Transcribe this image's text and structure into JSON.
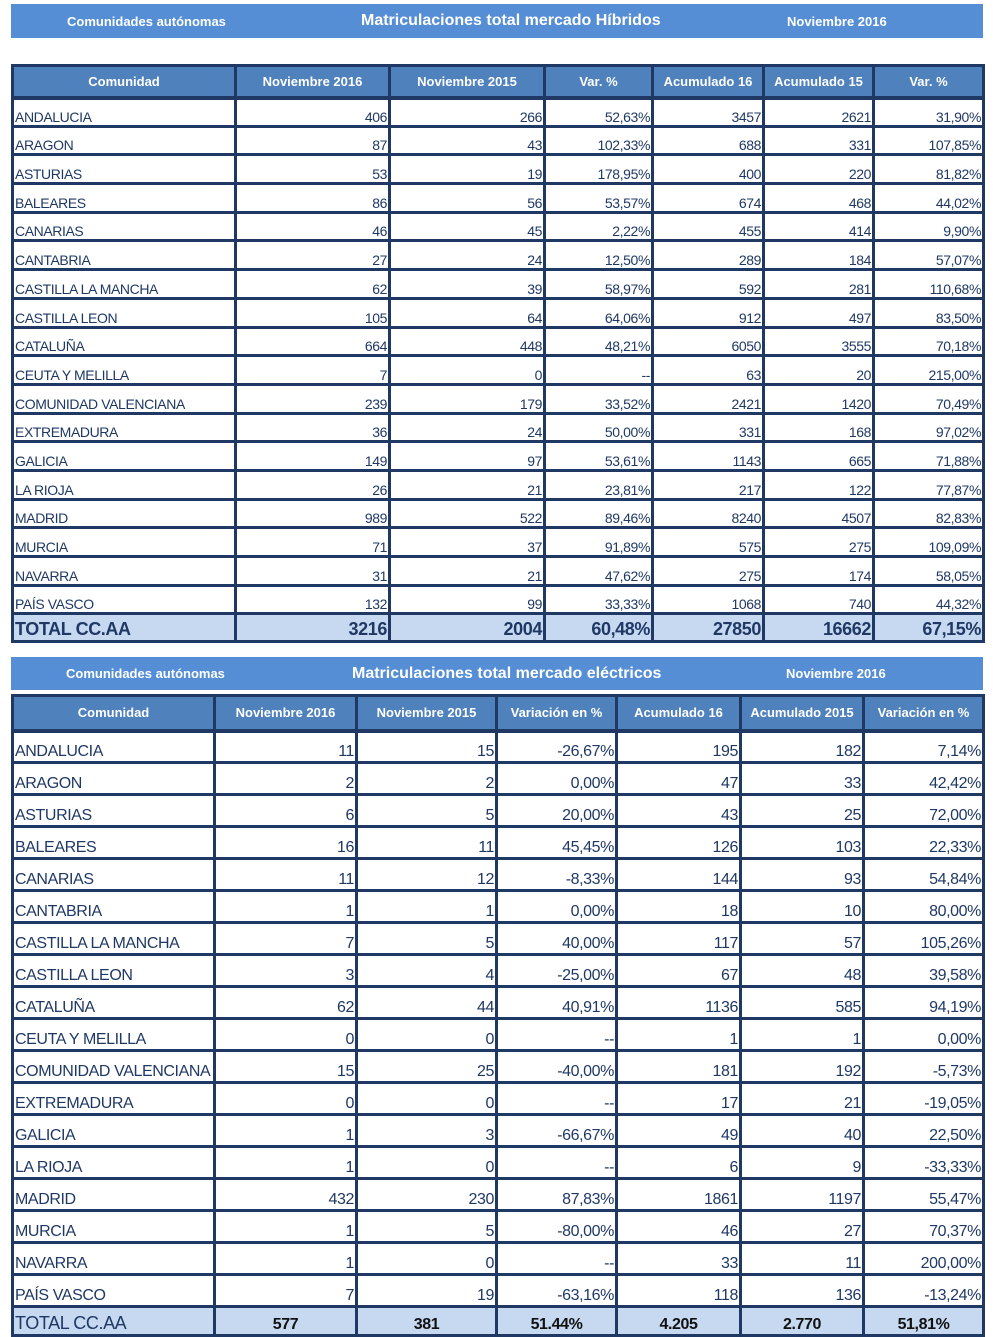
{
  "hybrid": {
    "band": {
      "left": "Comunidades autónomas",
      "title": "Matriculaciones total mercado Híbridos",
      "right": "Noviembre 2016"
    },
    "headers": [
      "Comunidad",
      "Noviembre 2016",
      "Noviembre 2015",
      "Var. %",
      "Acumulado 16",
      "Acumulado 15",
      "Var. %"
    ],
    "rows": [
      [
        "ANDALUCIA",
        "406",
        "266",
        "52,63%",
        "3457",
        "2621",
        "31,90%"
      ],
      [
        "ARAGON",
        "87",
        "43",
        "102,33%",
        "688",
        "331",
        "107,85%"
      ],
      [
        "ASTURIAS",
        "53",
        "19",
        "178,95%",
        "400",
        "220",
        "81,82%"
      ],
      [
        "BALEARES",
        "86",
        "56",
        "53,57%",
        "674",
        "468",
        "44,02%"
      ],
      [
        "CANARIAS",
        "46",
        "45",
        "2,22%",
        "455",
        "414",
        "9,90%"
      ],
      [
        "CANTABRIA",
        "27",
        "24",
        "12,50%",
        "289",
        "184",
        "57,07%"
      ],
      [
        "CASTILLA LA MANCHA",
        "62",
        "39",
        "58,97%",
        "592",
        "281",
        "110,68%"
      ],
      [
        "CASTILLA LEON",
        "105",
        "64",
        "64,06%",
        "912",
        "497",
        "83,50%"
      ],
      [
        "CATALUÑA",
        "664",
        "448",
        "48,21%",
        "6050",
        "3555",
        "70,18%"
      ],
      [
        "CEUTA Y MELILLA",
        "7",
        "0",
        "--",
        "63",
        "20",
        "215,00%"
      ],
      [
        "COMUNIDAD VALENCIANA",
        "239",
        "179",
        "33,52%",
        "2421",
        "1420",
        "70,49%"
      ],
      [
        "EXTREMADURA",
        "36",
        "24",
        "50,00%",
        "331",
        "168",
        "97,02%"
      ],
      [
        "GALICIA",
        "149",
        "97",
        "53,61%",
        "1143",
        "665",
        "71,88%"
      ],
      [
        "LA RIOJA",
        "26",
        "21",
        "23,81%",
        "217",
        "122",
        "77,87%"
      ],
      [
        "MADRID",
        "989",
        "522",
        "89,46%",
        "8240",
        "4507",
        "82,83%"
      ],
      [
        "MURCIA",
        "71",
        "37",
        "91,89%",
        "575",
        "275",
        "109,09%"
      ],
      [
        "NAVARRA",
        "31",
        "21",
        "47,62%",
        "275",
        "174",
        "58,05%"
      ],
      [
        "PAÍS VASCO",
        "132",
        "99",
        "33,33%",
        "1068",
        "740",
        "44,32%"
      ]
    ],
    "total": [
      "TOTAL CC.AA",
      "3216",
      "2004",
      "60,48%",
      "27850",
      "16662",
      "67,15%"
    ]
  },
  "electric": {
    "band": {
      "left": "Comunidades autónomas",
      "title": "Matriculaciones total mercado eléctricos",
      "right": "Noviembre 2016"
    },
    "headers": [
      "Comunidad",
      "Noviembre 2016",
      "Noviembre 2015",
      "Variación en %",
      "Acumulado 16",
      "Acumulado 2015",
      "Variación en %"
    ],
    "rows": [
      [
        "ANDALUCIA",
        "11",
        "15",
        "-26,67%",
        "195",
        "182",
        "7,14%"
      ],
      [
        "ARAGON",
        "2",
        "2",
        "0,00%",
        "47",
        "33",
        "42,42%"
      ],
      [
        "ASTURIAS",
        "6",
        "5",
        "20,00%",
        "43",
        "25",
        "72,00%"
      ],
      [
        "BALEARES",
        "16",
        "11",
        "45,45%",
        "126",
        "103",
        "22,33%"
      ],
      [
        "CANARIAS",
        "11",
        "12",
        "-8,33%",
        "144",
        "93",
        "54,84%"
      ],
      [
        "CANTABRIA",
        "1",
        "1",
        "0,00%",
        "18",
        "10",
        "80,00%"
      ],
      [
        "CASTILLA LA MANCHA",
        "7",
        "5",
        "40,00%",
        "117",
        "57",
        "105,26%"
      ],
      [
        "CASTILLA LEON",
        "3",
        "4",
        "-25,00%",
        "67",
        "48",
        "39,58%"
      ],
      [
        "CATALUÑA",
        "62",
        "44",
        "40,91%",
        "1136",
        "585",
        "94,19%"
      ],
      [
        "CEUTA Y MELILLA",
        "0",
        "0",
        "--",
        "1",
        "1",
        "0,00%"
      ],
      [
        "COMUNIDAD VALENCIANA",
        "15",
        "25",
        "-40,00%",
        "181",
        "192",
        "-5,73%"
      ],
      [
        "EXTREMADURA",
        "0",
        "0",
        "--",
        "17",
        "21",
        "-19,05%"
      ],
      [
        "GALICIA",
        "1",
        "3",
        "-66,67%",
        "49",
        "40",
        "22,50%"
      ],
      [
        "LA RIOJA",
        "1",
        "0",
        "--",
        "6",
        "9",
        "-33,33%"
      ],
      [
        "MADRID",
        "432",
        "230",
        "87,83%",
        "1861",
        "1197",
        "55,47%"
      ],
      [
        "MURCIA",
        "1",
        "5",
        "-80,00%",
        "46",
        "27",
        "70,37%"
      ],
      [
        "NAVARRA",
        "1",
        "0",
        "--",
        "33",
        "11",
        "200,00%"
      ],
      [
        "PAÍS VASCO",
        "7",
        "19",
        "-63,16%",
        "118",
        "136",
        "-13,24%"
      ]
    ],
    "total": [
      "TOTAL CC.AA",
      "577",
      "381",
      "51.44%",
      "4.205",
      "2.770",
      "51,81%"
    ]
  },
  "colors": {
    "band": "#558ed5",
    "header": "#4f81bd",
    "border": "#1f3864",
    "total": "#c6d9f1"
  }
}
